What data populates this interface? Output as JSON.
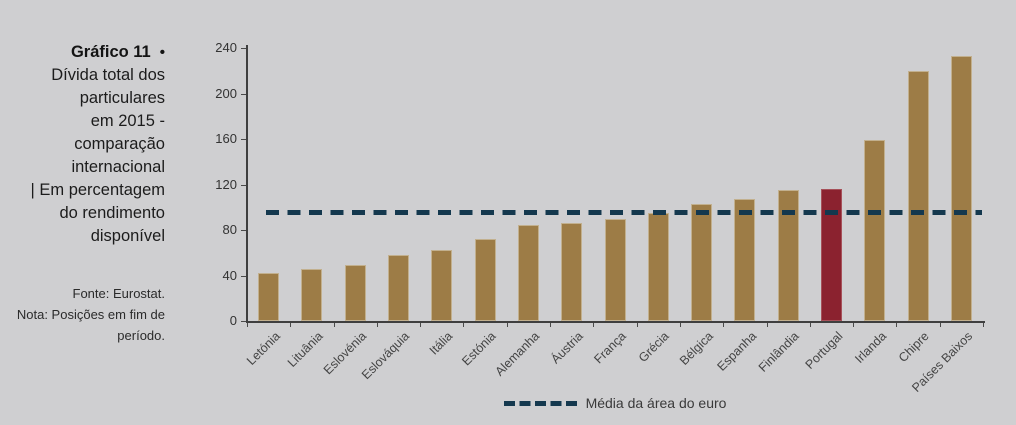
{
  "panel": {
    "title": "Gráfico 11",
    "bullet": "•",
    "title_lines": [
      "Dívida total dos",
      "particulares",
      "em 2015 -",
      "comparação",
      "internacional"
    ],
    "subtitle_lines": [
      "| Em percentagem",
      "do rendimento",
      "disponível"
    ],
    "note_lines": [
      "Fonte: Eurostat.",
      "Nota: Posições em fim de",
      "período."
    ]
  },
  "chart_data": {
    "type": "bar",
    "title": "Gráfico 11 • Dívida total dos particulares em 2015 - comparação internacional",
    "subtitle": "Em percentagem do rendimento disponível",
    "source": "Fonte: Eurostat.",
    "note": "Nota: Posições em fim de período.",
    "categories": [
      "Letónia",
      "Lituânia",
      "Eslovénia",
      "Eslováquia",
      "Itália",
      "Estónia",
      "Alemanha",
      "Áustria",
      "França",
      "Grécia",
      "Bélgica",
      "Espanha",
      "Finlândia",
      "Portugal",
      "Irlanda",
      "Chipre",
      "Países Baixos"
    ],
    "values": [
      42,
      46,
      49,
      58,
      62,
      72,
      84,
      86,
      90,
      95,
      103,
      107,
      115,
      116,
      159,
      220,
      233
    ],
    "highlight_category": "Portugal",
    "ylim": [
      0,
      240
    ],
    "ytick_step": 40,
    "grid": false,
    "legend_position": "bottom-center",
    "reference_line": {
      "label": "Média da área do euro",
      "value": 95,
      "style": "dashed"
    },
    "colors": {
      "bar": "#9D7C46",
      "bar_border": "#C2B08E",
      "highlight": "#8B222F",
      "highlight_border": "#A65059",
      "reference": "#14384E",
      "background": "#CFCFD1"
    }
  }
}
